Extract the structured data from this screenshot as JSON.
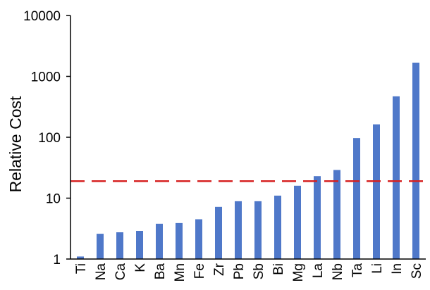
{
  "chart_data": {
    "type": "bar",
    "y_scale": "log",
    "ylim": [
      1,
      10000
    ],
    "ylabel": "Relative Cost",
    "xlabel": "",
    "y_ticks": [
      "1",
      "10",
      "100",
      "1000",
      "10000"
    ],
    "categories": [
      "Ti",
      "Na",
      "Ca",
      "K",
      "Ba",
      "Mn",
      "Fe",
      "Zr",
      "Pb",
      "Sb",
      "Bi",
      "Mg",
      "La",
      "Nb",
      "Ta",
      "Li",
      "In",
      "Sc"
    ],
    "values": [
      1.1,
      2.6,
      2.75,
      2.9,
      3.8,
      3.9,
      4.5,
      7.2,
      8.9,
      8.9,
      11,
      16,
      23,
      29,
      97,
      163,
      470,
      1680
    ],
    "bar_color": "#4f78c9",
    "reference_line": {
      "value": 19,
      "color": "#d62020",
      "style": "dashed"
    },
    "grid": false,
    "legend": "none"
  }
}
